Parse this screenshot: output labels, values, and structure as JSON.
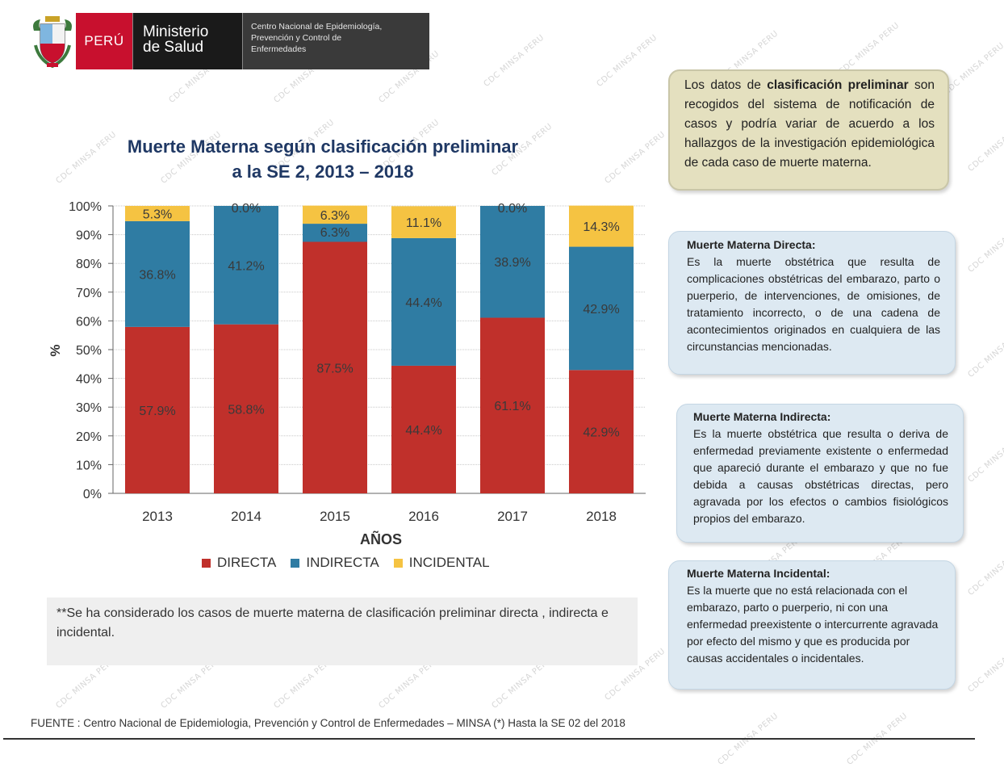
{
  "header": {
    "country": "PERÚ",
    "ministry_line1": "Ministerio",
    "ministry_line2": "de Salud",
    "center_line1": "Centro Nacional de Epidemiología,",
    "center_line2": "Prevención y Control de",
    "center_line3": "Enfermedades"
  },
  "watermark_text": "CDC MINSA PERU",
  "chart_data": {
    "type": "bar",
    "stacked": true,
    "title_line1": "Muerte Materna según clasificación preliminar",
    "title_line2": "a la SE 2, 2013 – 2018",
    "xlabel": "AÑOS",
    "ylabel": "%",
    "ylim": [
      0,
      100
    ],
    "yticks": [
      "0%",
      "10%",
      "20%",
      "30%",
      "40%",
      "50%",
      "60%",
      "70%",
      "80%",
      "90%",
      "100%"
    ],
    "categories": [
      "2013",
      "2014",
      "2015",
      "2016",
      "2017",
      "2018"
    ],
    "series": [
      {
        "name": "DIRECTA",
        "color": "#c0302b",
        "values": [
          57.9,
          58.8,
          87.5,
          44.4,
          61.1,
          42.9
        ],
        "labels": [
          "57.9%",
          "58.8%",
          "87.5%",
          "44.4%",
          "61.1%",
          "42.9%"
        ]
      },
      {
        "name": "INDIRECTA",
        "color": "#2f7ca3",
        "values": [
          36.8,
          41.2,
          6.3,
          44.4,
          38.9,
          42.9
        ],
        "labels": [
          "36.8%",
          "41.2%",
          "6.3%",
          "44.4%",
          "38.9%",
          "42.9%"
        ]
      },
      {
        "name": "INCIDENTAL",
        "color": "#f5c342",
        "values": [
          5.3,
          0.0,
          6.3,
          11.1,
          0.0,
          14.3
        ],
        "labels": [
          "5.3%",
          "0.0%",
          "6.3%",
          "11.1%",
          "0.0%",
          "14.3%"
        ]
      }
    ],
    "legend_position": "bottom",
    "grid": true
  },
  "note": {
    "text": "**Se ha  considerado los casos de muerte materna de clasificación preliminar directa , indirecta  e incidental."
  },
  "info_top": {
    "prefix": "Los datos de ",
    "bold": "clasificación preliminar",
    "suffix": " son recogidos del sistema de notificación de casos y podría variar de acuerdo a los hallazgos de la investigación epidemiológica de cada caso de muerte materna."
  },
  "info_directa": {
    "heading": "Muerte Materna Directa:",
    "body": "Es la muerte obstétrica que resulta de complicaciones obstétricas del embarazo, parto o puerperio, de intervenciones, de omisiones, de tratamiento incorrecto, o de una cadena de acontecimientos originados en cualquiera de las circunstancias mencionadas."
  },
  "info_indirecta": {
    "heading": "Muerte Materna Indirecta:",
    "body": "Es la muerte obstétrica que resulta o deriva de enfermedad previamente existente o enfermedad que apareció durante el embarazo y que no fue debida a causas obstétricas directas, pero agravada por los efectos o cambios fisiológicos propios del embarazo."
  },
  "info_incidental": {
    "heading": "Muerte Materna Incidental:",
    "body": "Es la muerte que no está relacionada con el embarazo, parto o puerperio, ni con una enfermedad preexistente o intercurrente agravada por efecto del mismo y que es producida por causas accidentales o incidentales."
  },
  "footer": {
    "fuente": "FUENTE : Centro Nacional de Epidemiologia, Prevención y Control de Enfermedades – MINSA  (*) Hasta la SE 02 del 2018"
  }
}
